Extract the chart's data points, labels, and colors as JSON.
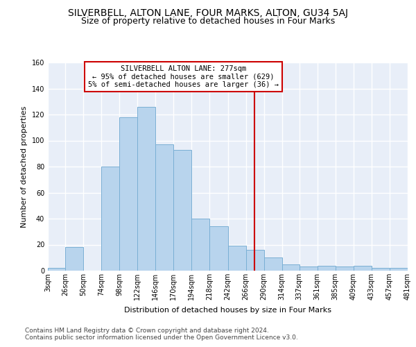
{
  "title1": "SILVERBELL, ALTON LANE, FOUR MARKS, ALTON, GU34 5AJ",
  "title2": "Size of property relative to detached houses in Four Marks",
  "xlabel": "Distribution of detached houses by size in Four Marks",
  "ylabel": "Number of detached properties",
  "bar_color": "#b8d4ed",
  "bar_edge_color": "#7aafd4",
  "background_color": "#e8eef8",
  "grid_color": "#ffffff",
  "vline_x": 277,
  "vline_color": "#cc0000",
  "annotation_text": "SILVERBELL ALTON LANE: 277sqm\n← 95% of detached houses are smaller (629)\n5% of semi-detached houses are larger (36) →",
  "annotation_box_edgecolor": "#cc0000",
  "bin_edges": [
    3,
    26,
    50,
    74,
    98,
    122,
    146,
    170,
    194,
    218,
    242,
    266,
    290,
    314,
    337,
    361,
    385,
    409,
    433,
    457,
    481
  ],
  "bar_heights": [
    2,
    18,
    0,
    80,
    118,
    126,
    97,
    93,
    40,
    34,
    19,
    16,
    10,
    5,
    3,
    4,
    3,
    4,
    2,
    2
  ],
  "ylim": [
    0,
    160
  ],
  "yticks": [
    0,
    20,
    40,
    60,
    80,
    100,
    120,
    140,
    160
  ],
  "footnote_line1": "Contains HM Land Registry data © Crown copyright and database right 2024.",
  "footnote_line2": "Contains public sector information licensed under the Open Government Licence v3.0.",
  "title1_fontsize": 10,
  "title2_fontsize": 9,
  "xlabel_fontsize": 8,
  "ylabel_fontsize": 8,
  "annot_fontsize": 7.5,
  "tick_fontsize": 7,
  "footnote_fontsize": 6.5
}
